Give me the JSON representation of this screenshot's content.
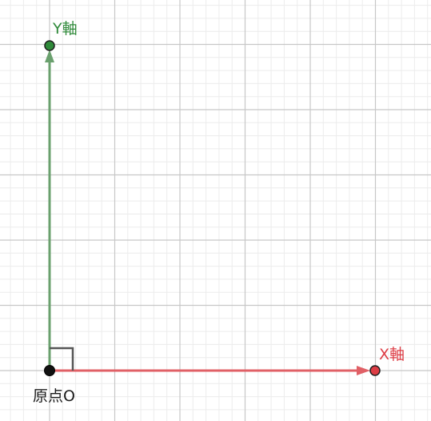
{
  "diagram": {
    "grid_visible": true,
    "colors": {
      "grid_minor": "#ececec",
      "grid_major": "#c7c7c7",
      "x_axis": "#e06066",
      "x_point_fill": "#dd3d45",
      "y_axis": "#6aa06e",
      "y_point_fill": "#2f8a3a",
      "origin_fill": "#111111",
      "right_angle_marker": "#555555"
    },
    "labels": {
      "origin": "原点O",
      "x_axis": "X軸",
      "y_axis": "Y軸"
    }
  }
}
